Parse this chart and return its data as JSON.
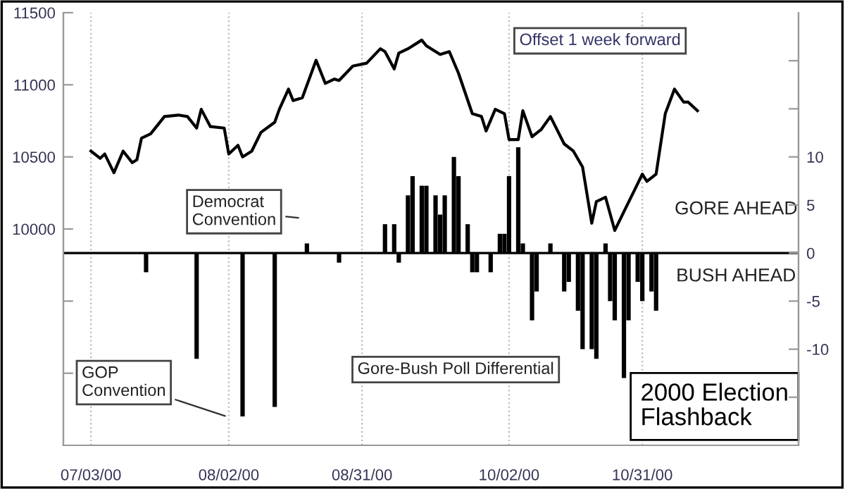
{
  "chart_data": {
    "type": "line",
    "title": "2000 Election\nFlashback",
    "annotations": [
      "Offset 1 week forward",
      "Democrat\nConvention",
      "GOP\nConvention",
      "Gore-Bush Poll Differential",
      "GORE AHEAD",
      "BUSH AHEAD"
    ],
    "series": [
      {
        "color": "#000000",
        "line_style": "solid",
        "marker": "none",
        "x": [
          "2000-07-03",
          "2000-07-05",
          "2000-07-06",
          "2000-07-08",
          "2000-07-10",
          "2000-07-12",
          "2000-07-13",
          "2000-07-14",
          "2000-07-16",
          "2000-07-19",
          "2000-07-22",
          "2000-07-24",
          "2000-07-26",
          "2000-07-27",
          "2000-07-29",
          "2000-08-01",
          "2000-08-02",
          "2000-08-04",
          "2000-08-05",
          "2000-08-07",
          "2000-08-09",
          "2000-08-12",
          "2000-08-13",
          "2000-08-15",
          "2000-08-16",
          "2000-08-18",
          "2000-08-21",
          "2000-08-23",
          "2000-08-25",
          "2000-08-26",
          "2000-08-29",
          "2000-09-01",
          "2000-09-04",
          "2000-09-05",
          "2000-09-07",
          "2000-09-08",
          "2000-09-10",
          "2000-09-13",
          "2000-09-14",
          "2000-09-17",
          "2000-09-19",
          "2000-09-21",
          "2000-09-24",
          "2000-09-26",
          "2000-09-27",
          "2000-09-29",
          "2000-10-01",
          "2000-10-02",
          "2000-10-04",
          "2000-10-05",
          "2000-10-07",
          "2000-10-09",
          "2000-10-11",
          "2000-10-14",
          "2000-10-16",
          "2000-10-18",
          "2000-10-20",
          "2000-10-21",
          "2000-10-23",
          "2000-10-25",
          "2000-10-27",
          "2000-10-29",
          "2000-10-31",
          "2000-11-01",
          "2000-11-03",
          "2000-11-05",
          "2000-11-07",
          "2000-11-09",
          "2000-11-10",
          "2000-11-12"
        ],
        "values": [
          10540,
          10490,
          10520,
          10390,
          10540,
          10460,
          10480,
          10630,
          10660,
          10780,
          10790,
          10780,
          10700,
          10830,
          10710,
          10700,
          10520,
          10580,
          10500,
          10540,
          10670,
          10740,
          10830,
          10970,
          10890,
          10910,
          11170,
          11010,
          11040,
          11030,
          11130,
          11150,
          11250,
          11230,
          11110,
          11220,
          11250,
          11310,
          11270,
          11210,
          11230,
          11080,
          10800,
          10780,
          10680,
          10830,
          10800,
          10620,
          10620,
          10820,
          10640,
          10690,
          10780,
          10590,
          10540,
          10430,
          10040,
          10190,
          10220,
          9990,
          10120,
          10250,
          10380,
          10330,
          10380,
          10800,
          10970,
          10880,
          10880,
          10820
        ]
      },
      {
        "type": "bar",
        "axis": "y2",
        "color": "#000000",
        "x": [
          "2000-07-15",
          "2000-07-26",
          "2000-08-05",
          "2000-08-12",
          "2000-08-19",
          "2000-08-26",
          "2000-09-05",
          "2000-09-07",
          "2000-09-08",
          "2000-09-10",
          "2000-09-11",
          "2000-09-13",
          "2000-09-14",
          "2000-09-16",
          "2000-09-17",
          "2000-09-18",
          "2000-09-20",
          "2000-09-21",
          "2000-09-23",
          "2000-09-24",
          "2000-09-25",
          "2000-09-28",
          "2000-09-30",
          "2000-10-01",
          "2000-10-02",
          "2000-10-04",
          "2000-10-05",
          "2000-10-07",
          "2000-10-08",
          "2000-10-11",
          "2000-10-14",
          "2000-10-15",
          "2000-10-17",
          "2000-10-18",
          "2000-10-20",
          "2000-10-21",
          "2000-10-23",
          "2000-10-24",
          "2000-10-25",
          "2000-10-27",
          "2000-10-28",
          "2000-10-30",
          "2000-10-31",
          "2000-11-02",
          "2000-11-03"
        ],
        "values": [
          -2,
          -11,
          -17,
          -16,
          1,
          -1,
          3,
          3,
          -1,
          6,
          8,
          7,
          7,
          6,
          4,
          6,
          10,
          8,
          3,
          -2,
          -2,
          -2,
          2,
          2,
          8,
          11,
          1,
          -7,
          -4,
          1,
          -4,
          -3,
          -6,
          -10,
          -10,
          -11,
          1,
          -5,
          -7,
          -13,
          -7,
          -3,
          -5,
          -4,
          -6
        ]
      }
    ],
    "xlim": [
      "2000-06-27",
      "2000-12-04"
    ],
    "xticks": [
      {
        "value": "2000-07-03",
        "label": "07/03/00"
      },
      {
        "value": "2000-08-02",
        "label": "08/02/00"
      },
      {
        "value": "2000-08-31",
        "label": "08/31/00"
      },
      {
        "value": "2000-10-02",
        "label": "10/02/00"
      },
      {
        "value": "2000-10-31",
        "label": "10/31/00"
      }
    ],
    "ylim": [
      8500,
      11500
    ],
    "yticks": [
      {
        "value": 9000,
        "label": null
      },
      {
        "value": 9500,
        "label": null
      },
      10000,
      10500,
      11000,
      11500
    ],
    "y2lim": [
      -20,
      25
    ],
    "y2ticks": [
      {
        "value": -15,
        "label": null
      },
      -10,
      -5,
      0,
      5,
      10,
      {
        "value": 15,
        "label": null
      },
      {
        "value": 20,
        "label": null
      }
    ],
    "ref_lines": [
      {
        "axis": "y2",
        "value": 0,
        "color": "#000000",
        "line_style": "solid"
      }
    ],
    "grid": "x",
    "legend": false
  }
}
